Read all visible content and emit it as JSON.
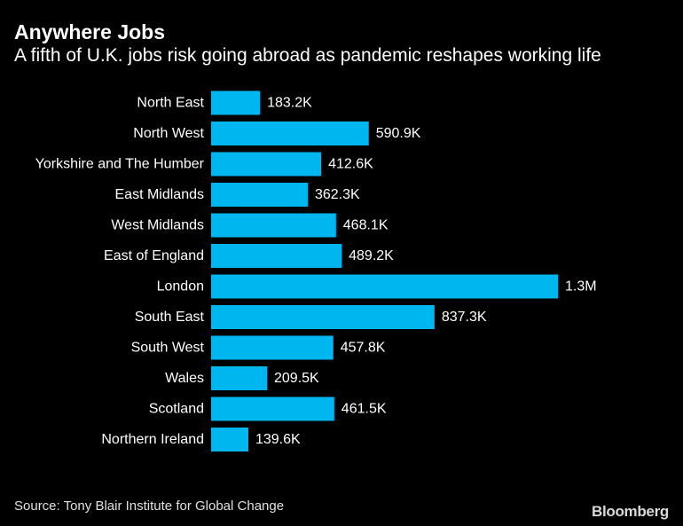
{
  "header": {
    "title": "Anywhere Jobs",
    "subtitle": "A fifth of U.K. jobs risk going abroad as pandemic reshapes working life"
  },
  "footer": {
    "source": "Source: Tony Blair Institute for Global Change",
    "brand": "Bloomberg"
  },
  "chart_data": {
    "type": "bar",
    "orientation": "horizontal",
    "categories": [
      "North East",
      "North West",
      "Yorkshire and The Humber",
      "East Midlands",
      "West Midlands",
      "East of England",
      "London",
      "South East",
      "South West",
      "Wales",
      "Scotland",
      "Northern Ireland"
    ],
    "values": [
      183.2,
      590.9,
      412.6,
      362.3,
      468.1,
      489.2,
      1300,
      837.3,
      457.8,
      209.5,
      461.5,
      139.6
    ],
    "value_unit": "thousands of jobs",
    "data_labels": [
      "183.2K",
      "590.9K",
      "412.6K",
      "362.3K",
      "468.1K",
      "489.2K",
      "1.3M",
      "837.3K",
      "457.8K",
      "209.5K",
      "461.5K",
      "139.6K"
    ],
    "bar_color": "#00b6ee",
    "background": "#000000",
    "grid": false,
    "legend": "none",
    "xlim": [
      0,
      1300
    ]
  }
}
